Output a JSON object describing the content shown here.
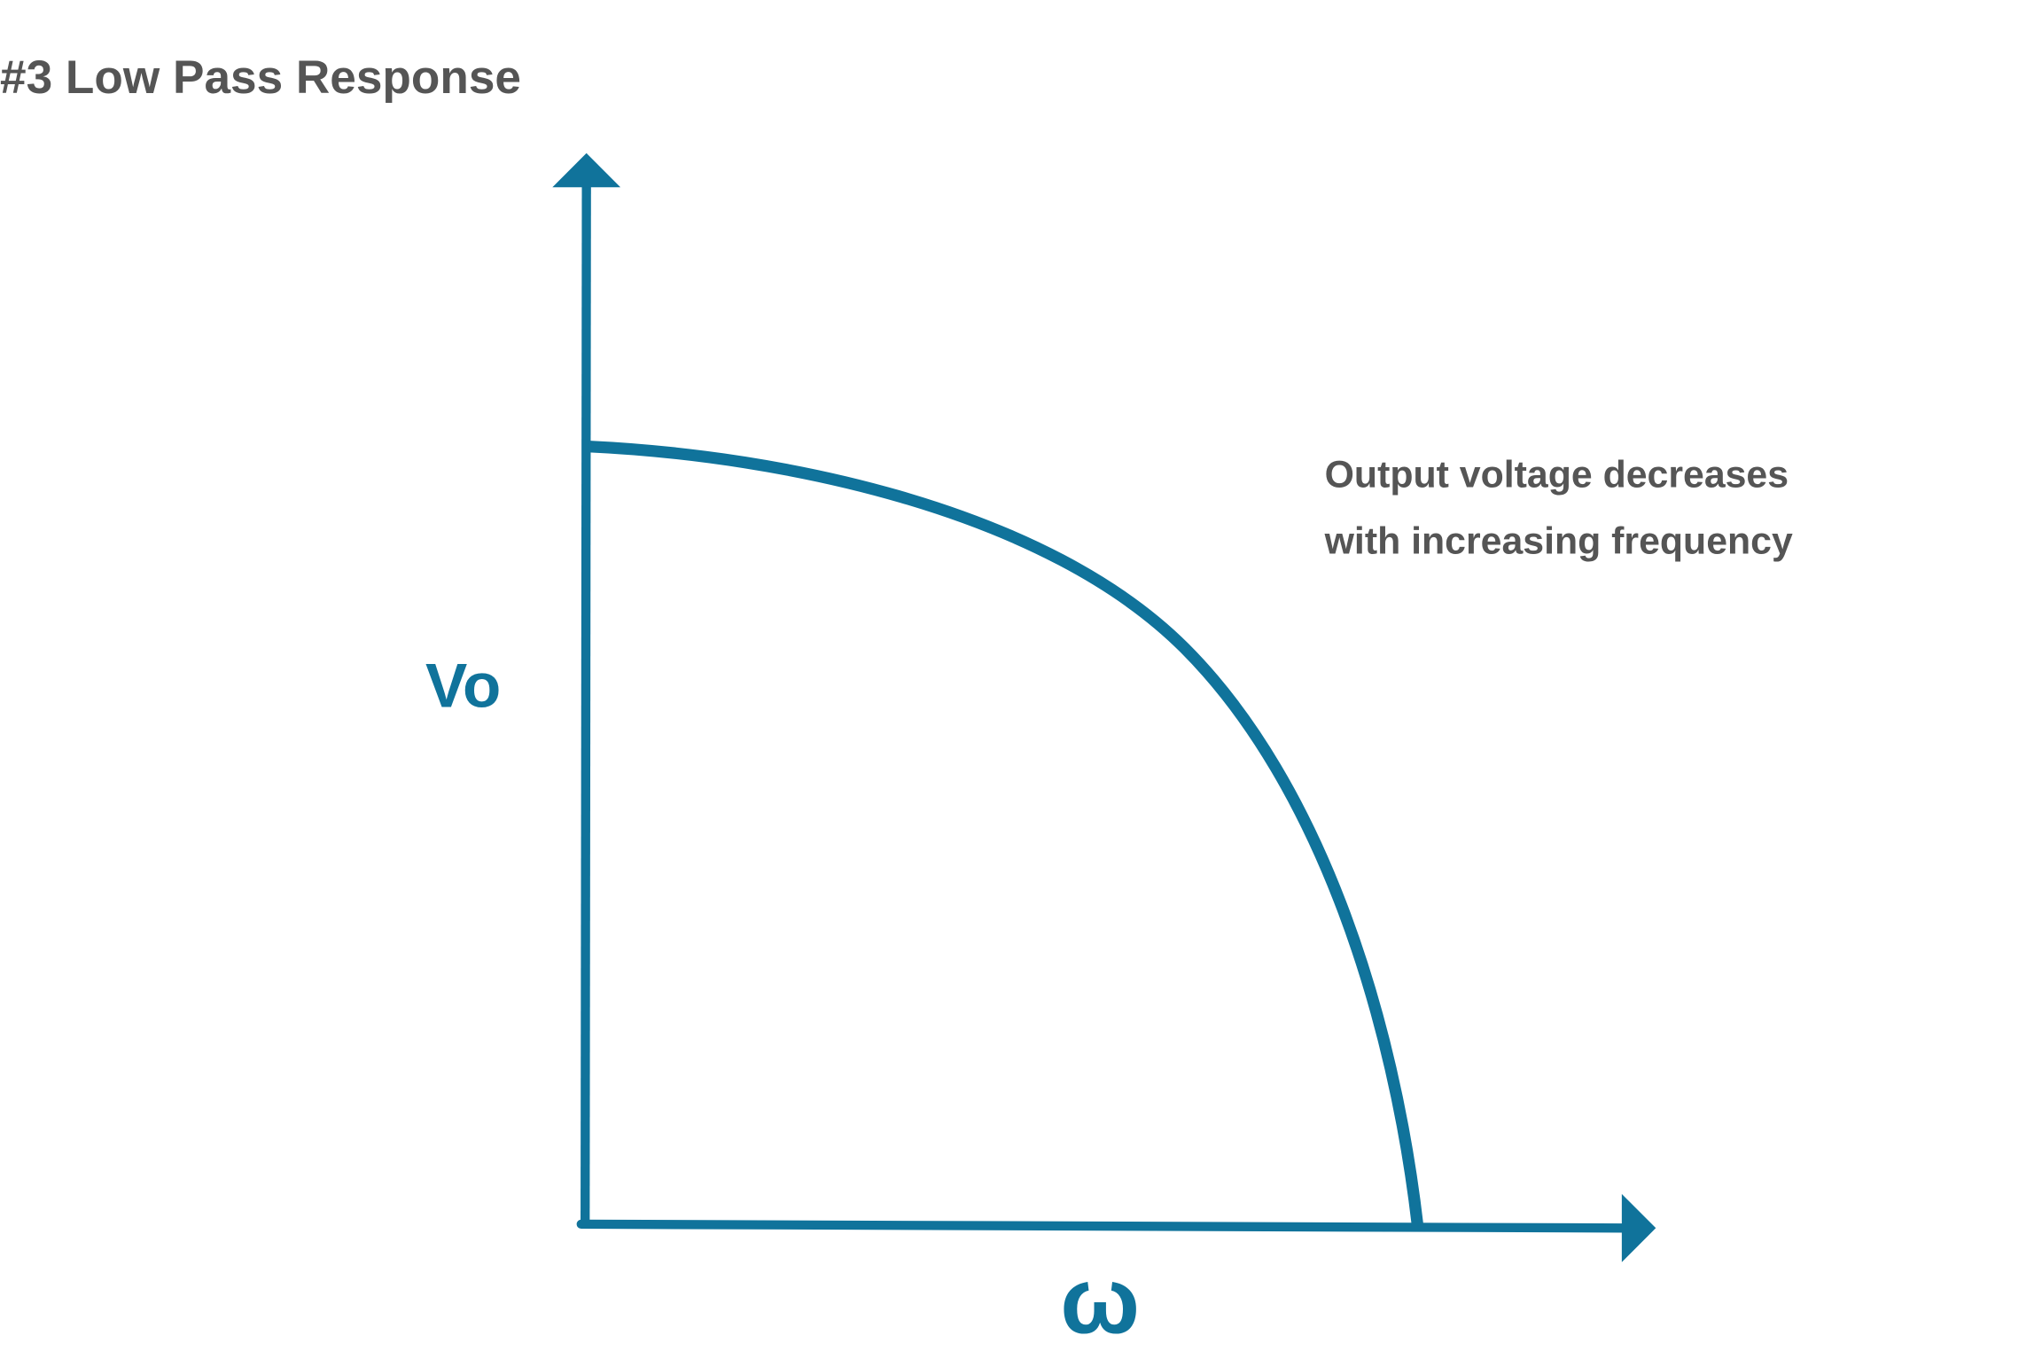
{
  "title": "#3 Low Pass Response",
  "annotation": {
    "line1": "Output voltage decreases",
    "line2": "with increasing frequency"
  },
  "axes": {
    "y_label": "Vo",
    "x_label": "ω"
  },
  "colors": {
    "curve": "#10739b",
    "text": "#555555"
  }
}
